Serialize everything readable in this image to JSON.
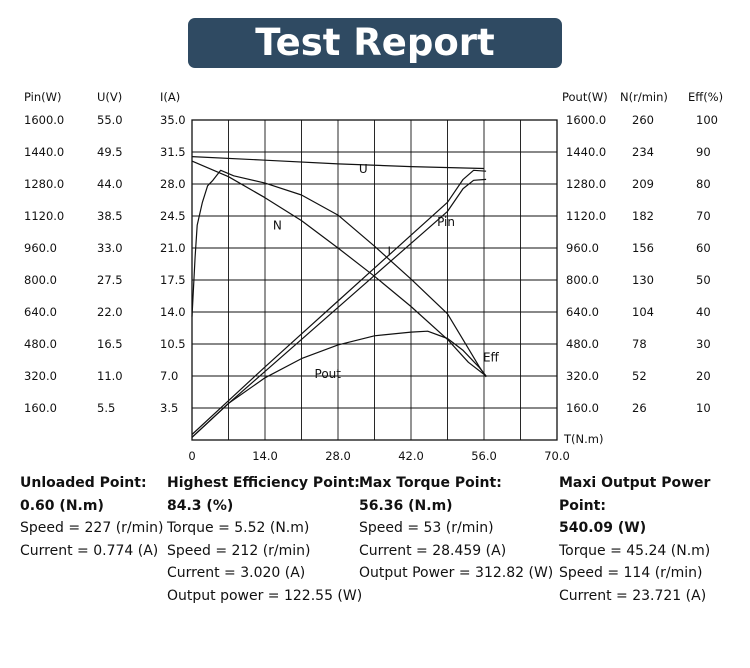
{
  "title": "Test Report",
  "chart_data": {
    "type": "line",
    "x_axis": {
      "label": "T(N.m)",
      "ticks": [
        "0",
        "14.0",
        "28.0",
        "42.0",
        "56.0",
        "70.0"
      ],
      "range": [
        0,
        70
      ]
    },
    "left_axes": [
      {
        "label": "Pin(W)",
        "ticks": [
          "1600.0",
          "1440.0",
          "1280.0",
          "1120.0",
          "960.0",
          "800.0",
          "640.0",
          "480.0",
          "320.0",
          "160.0"
        ]
      },
      {
        "label": "U(V)",
        "ticks": [
          "55.0",
          "49.5",
          "44.0",
          "38.5",
          "33.0",
          "27.5",
          "22.0",
          "16.5",
          "11.0",
          "5.5"
        ]
      },
      {
        "label": "I(A)",
        "ticks": [
          "35.0",
          "31.5",
          "28.0",
          "24.5",
          "21.0",
          "17.5",
          "14.0",
          "10.5",
          "7.0",
          "3.5"
        ],
        "range": [
          0,
          35
        ]
      }
    ],
    "right_axes": [
      {
        "label": "Pout(W)",
        "ticks": [
          "1600.0",
          "1440.0",
          "1280.0",
          "1120.0",
          "960.0",
          "800.0",
          "640.0",
          "480.0",
          "320.0",
          "160.0"
        ]
      },
      {
        "label": "N(r/min)",
        "ticks": [
          "260",
          "234",
          "209",
          "182",
          "156",
          "130",
          "104",
          "78",
          "52",
          "26"
        ]
      },
      {
        "label": "Eff(%)",
        "ticks": [
          "100",
          "90",
          "80",
          "70",
          "60",
          "50",
          "40",
          "30",
          "20",
          "10"
        ]
      }
    ],
    "grid": true,
    "series": [
      {
        "name": "U",
        "color": "#111111",
        "points": [
          [
            0,
            31.0
          ],
          [
            14,
            30.6
          ],
          [
            28,
            30.2
          ],
          [
            42,
            29.9
          ],
          [
            56,
            29.7
          ]
        ]
      },
      {
        "name": "N",
        "color": "#111111",
        "points": [
          [
            0,
            30.5
          ],
          [
            7,
            28.8
          ],
          [
            14,
            26.5
          ],
          [
            21,
            24.0
          ],
          [
            28,
            21.0
          ],
          [
            35,
            17.9
          ],
          [
            42,
            14.6
          ],
          [
            49,
            11.0
          ],
          [
            53,
            8.5
          ],
          [
            56.4,
            7.0
          ]
        ]
      },
      {
        "name": "I",
        "color": "#111111",
        "points": [
          [
            0,
            0.3
          ],
          [
            7,
            4.0
          ],
          [
            14,
            7.5
          ],
          [
            21,
            11.0
          ],
          [
            28,
            14.5
          ],
          [
            35,
            18.0
          ],
          [
            42,
            21.5
          ],
          [
            49,
            25.0
          ],
          [
            52,
            27.5
          ],
          [
            54,
            28.4
          ],
          [
            56.4,
            28.5
          ]
        ]
      },
      {
        "name": "Pin",
        "color": "#111111",
        "points": [
          [
            0,
            0.6
          ],
          [
            7,
            4.3
          ],
          [
            14,
            8.0
          ],
          [
            21,
            11.6
          ],
          [
            28,
            15.2
          ],
          [
            35,
            18.8
          ],
          [
            42,
            22.4
          ],
          [
            49,
            26.0
          ],
          [
            52,
            28.5
          ],
          [
            54,
            29.5
          ],
          [
            56.4,
            29.4
          ]
        ]
      },
      {
        "name": "Pout",
        "color": "#111111",
        "points": [
          [
            0,
            0.3
          ],
          [
            7,
            4.0
          ],
          [
            14,
            6.8
          ],
          [
            21,
            8.9
          ],
          [
            28,
            10.4
          ],
          [
            35,
            11.4
          ],
          [
            42,
            11.8
          ],
          [
            45.2,
            11.9
          ],
          [
            49,
            11.1
          ],
          [
            52,
            9.8
          ],
          [
            55,
            8.0
          ],
          [
            56.4,
            7.0
          ]
        ]
      },
      {
        "name": "Eff",
        "color": "#111111",
        "points": [
          [
            0,
            13.5
          ],
          [
            0.6,
            20.0
          ],
          [
            1,
            23.5
          ],
          [
            2,
            26.0
          ],
          [
            3,
            27.8
          ],
          [
            4,
            28.4
          ],
          [
            5.5,
            29.5
          ],
          [
            8,
            28.9
          ],
          [
            14,
            28.1
          ],
          [
            21,
            26.8
          ],
          [
            28,
            24.6
          ],
          [
            35,
            21.2
          ],
          [
            42,
            17.6
          ],
          [
            49,
            13.8
          ],
          [
            53,
            10.0
          ],
          [
            55,
            8.1
          ],
          [
            56.4,
            6.9
          ]
        ]
      }
    ],
    "annotations": [
      {
        "text": "U",
        "x": 32,
        "y": 29.2
      },
      {
        "text": "N",
        "x": 15.5,
        "y": 23.0
      },
      {
        "text": "I",
        "x": 37.5,
        "y": 20.2
      },
      {
        "text": "Pin",
        "x": 47,
        "y": 23.4
      },
      {
        "text": "Pout",
        "x": 23.5,
        "y": 6.8
      },
      {
        "text": "Eff",
        "x": 55.8,
        "y": 8.6
      }
    ]
  },
  "summary": [
    {
      "heading": "Unloaded Point:",
      "value": "0.60 (N.m)",
      "lines": [
        "Speed = 227 (r/min)",
        "Current = 0.774 (A)"
      ]
    },
    {
      "heading": "Highest Efficiency Point:",
      "value": "84.3 (%)",
      "lines": [
        "Torque = 5.52 (N.m)",
        "Speed = 212 (r/min)",
        "Current = 3.020 (A)",
        "Output power = 122.55 (W)"
      ]
    },
    {
      "heading": "Max Torque Point:",
      "value": "56.36 (N.m)",
      "lines": [
        "Speed = 53 (r/min)",
        "Current = 28.459 (A)",
        "Output Power = 312.82 (W)"
      ]
    },
    {
      "heading": "Maxi Output Power Point:",
      "value": "540.09 (W)",
      "lines": [
        "Torque = 45.24 (N.m)",
        "Speed = 114 (r/min)",
        "Current = 23.721 (A)"
      ]
    }
  ]
}
